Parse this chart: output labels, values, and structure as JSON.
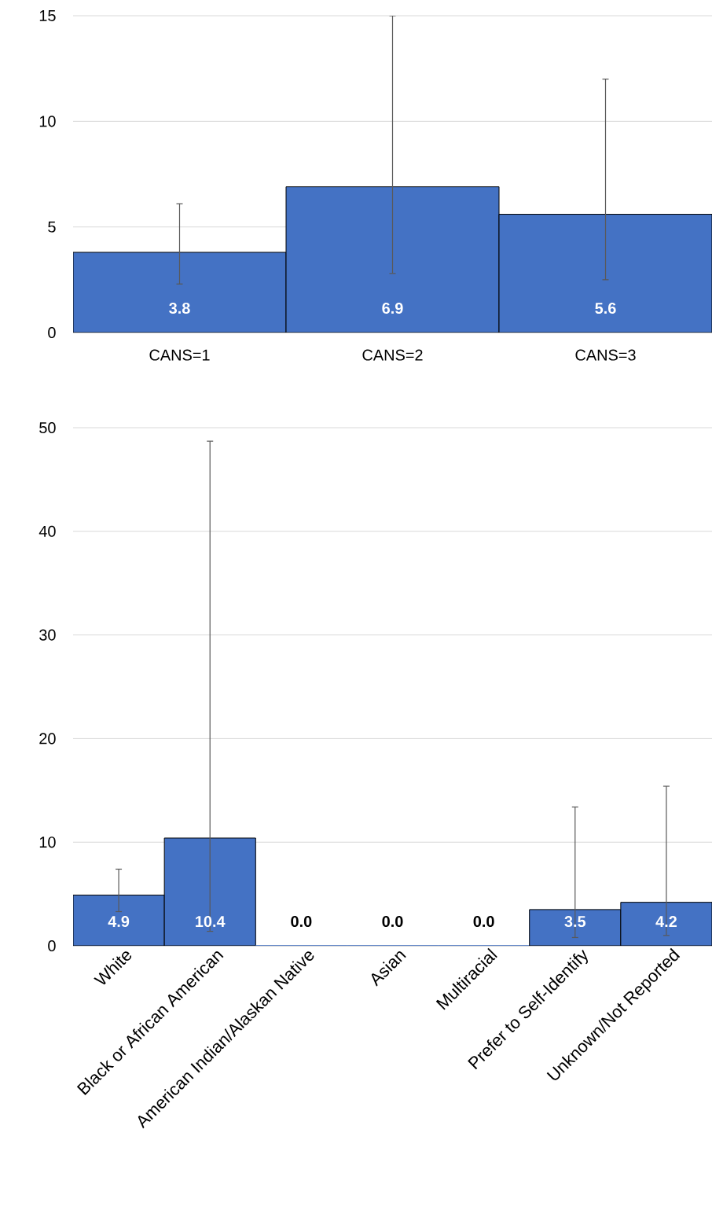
{
  "chart_data": [
    {
      "type": "bar",
      "categories": [
        "CANS=1",
        "CANS=2",
        "CANS=3"
      ],
      "values": [
        3.8,
        6.9,
        5.6
      ],
      "color": "#4472c4",
      "errors": [
        [
          2.3,
          6.1
        ],
        [
          2.8,
          15
        ],
        [
          2.5,
          12
        ]
      ],
      "value_labels": [
        "3.8",
        "6.9",
        "5.6"
      ],
      "ylim": [
        0,
        15
      ],
      "yticks": [
        0,
        5,
        10,
        15
      ],
      "grid": "y"
    },
    {
      "type": "bar",
      "categories": [
        "White",
        "Black or African American",
        "American Indian/Alaskan Native",
        "Asian",
        "Multiracial",
        "Prefer to Self-Identify",
        "Unknown/Not Reported"
      ],
      "values": [
        4.9,
        10.4,
        0,
        0,
        0,
        3.5,
        4.2
      ],
      "color": "#4472c4",
      "errors": [
        [
          3.3,
          7.4
        ],
        [
          1.4,
          48.7
        ],
        null,
        null,
        null,
        [
          0.8,
          13.4
        ],
        [
          1.0,
          15.4
        ]
      ],
      "value_labels": [
        "4.9",
        "10.4",
        "0.0",
        "0.0",
        "0.0",
        "3.5",
        "4.2"
      ],
      "ylim": [
        0,
        50
      ],
      "yticks": [
        0,
        10,
        20,
        30,
        40,
        50
      ],
      "grid": "y"
    }
  ]
}
